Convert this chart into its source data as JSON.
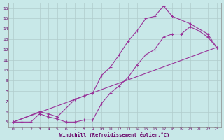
{
  "background_color": "#c8e8e8",
  "grid_color": "#b0cccc",
  "line_color": "#993399",
  "xlabel": "Windchill (Refroidissement éolien,°C)",
  "xlim": [
    -0.5,
    23.5
  ],
  "ylim": [
    4.5,
    16.5
  ],
  "xticks": [
    0,
    1,
    2,
    3,
    4,
    5,
    6,
    7,
    8,
    9,
    10,
    11,
    12,
    13,
    14,
    15,
    16,
    17,
    18,
    19,
    20,
    21,
    22,
    23
  ],
  "yticks": [
    5,
    6,
    7,
    8,
    9,
    10,
    11,
    12,
    13,
    14,
    15,
    16
  ],
  "line1_x": [
    0,
    1,
    2,
    3,
    4,
    5,
    6,
    7,
    8,
    9,
    10,
    11,
    12,
    13,
    14,
    15,
    16,
    17,
    18,
    19,
    20,
    21,
    22,
    23
  ],
  "line1_y": [
    5.0,
    5.0,
    5.0,
    5.8,
    5.5,
    5.3,
    5.0,
    5.0,
    5.2,
    5.2,
    6.8,
    7.8,
    8.5,
    9.3,
    10.5,
    11.5,
    12.0,
    13.2,
    13.5,
    13.5,
    14.2,
    13.8,
    13.2,
    12.2
  ],
  "line2_x": [
    0,
    3,
    4,
    5,
    7,
    8,
    9,
    10,
    11,
    12,
    13,
    14,
    15,
    16,
    17,
    18,
    20,
    22,
    23
  ],
  "line2_y": [
    5.0,
    6.0,
    5.8,
    5.5,
    7.2,
    7.5,
    7.8,
    9.5,
    10.3,
    11.5,
    12.8,
    13.8,
    15.0,
    15.2,
    16.2,
    15.2,
    14.5,
    13.5,
    12.2
  ],
  "line3_x": [
    0,
    23
  ],
  "line3_y": [
    5.0,
    12.2
  ]
}
